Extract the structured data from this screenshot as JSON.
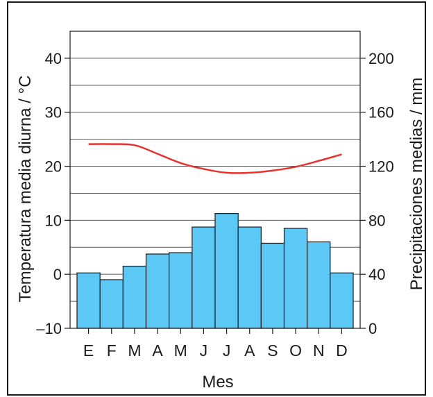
{
  "chart_data": {
    "type": "bar",
    "categories": [
      "E",
      "F",
      "M",
      "A",
      "M",
      "J",
      "J",
      "A",
      "S",
      "O",
      "N",
      "D"
    ],
    "xlabel": "Mes",
    "ylabel_left": "Temperatura media diurna / °C",
    "ylabel_right": "Precipitaciones medias / mm",
    "ylim_left": [
      -10,
      45
    ],
    "ylim_right": [
      0,
      220
    ],
    "yticks_left": [
      -10,
      0,
      10,
      20,
      30,
      40
    ],
    "yticks_right": [
      0,
      40,
      80,
      120,
      160,
      200
    ],
    "grid": true,
    "series": [
      {
        "type": "bar",
        "axis": "right",
        "values": [
          41,
          36,
          46,
          55,
          56,
          75,
          85,
          75,
          63,
          74,
          64,
          41
        ],
        "color": "#5bc8f5"
      },
      {
        "type": "line",
        "axis": "left",
        "values": [
          24.1,
          24.1,
          23.9,
          22.3,
          20.6,
          19.5,
          18.8,
          18.8,
          19.2,
          19.9,
          21.0,
          22.2
        ],
        "color": "#e8322e"
      }
    ],
    "tick_labels_left": [
      "–10",
      "0",
      "10",
      "20",
      "30",
      "40"
    ],
    "tick_labels_right": [
      "0",
      "40",
      "80",
      "120",
      "160",
      "200"
    ]
  }
}
